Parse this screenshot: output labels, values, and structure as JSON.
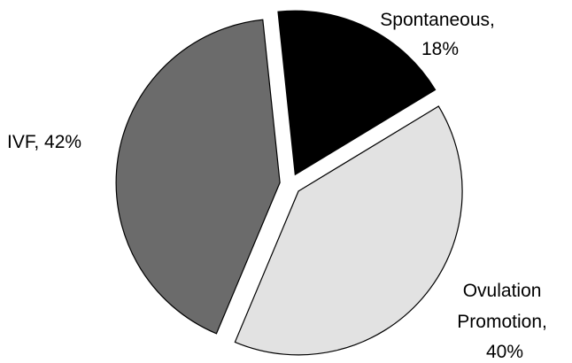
{
  "chart_data": {
    "type": "pie",
    "title": "",
    "slices": [
      {
        "name": "Spontaneous",
        "value": 18,
        "label_lines": [
          "Spontaneous,",
          "18%"
        ],
        "color": "#000000"
      },
      {
        "name": "Ovulation Promotion",
        "value": 40,
        "label_lines": [
          "Ovulation",
          "Promotion,",
          "40%"
        ],
        "color": "#e2e2e2"
      },
      {
        "name": "IVF",
        "value": 42,
        "label_lines": [
          "IVF, 42%"
        ],
        "color": "#6b6b6b"
      }
    ],
    "start_angle_deg": -6,
    "direction": "clockwise",
    "exploded": true,
    "legend": "none"
  }
}
